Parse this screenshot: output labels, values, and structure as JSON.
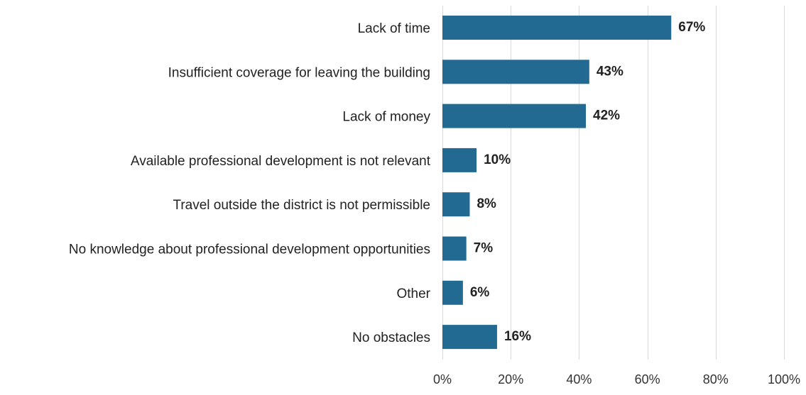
{
  "chart_data": {
    "type": "bar",
    "orientation": "horizontal",
    "title": "",
    "xlabel": "",
    "ylabel": "",
    "categories": [
      "Lack of time",
      "Insufficient coverage for leaving the building",
      "Lack of money",
      "Available professional development is not relevant",
      "Travel outside the district is not permissible",
      "No knowledge about professional development opportunities",
      "Other",
      "No obstacles"
    ],
    "values": [
      67,
      43,
      42,
      10,
      8,
      7,
      6,
      16
    ],
    "value_labels": [
      "67%",
      "43%",
      "42%",
      "10%",
      "8%",
      "7%",
      "6%",
      "16%"
    ],
    "xlim": [
      0,
      100
    ],
    "x_ticks": [
      0,
      20,
      40,
      60,
      80,
      100
    ],
    "x_tick_labels": [
      "0%",
      "20%",
      "40%",
      "60%",
      "80%",
      "100%"
    ],
    "grid": "vertical",
    "legend": "none",
    "bar_color": "#236a92"
  }
}
